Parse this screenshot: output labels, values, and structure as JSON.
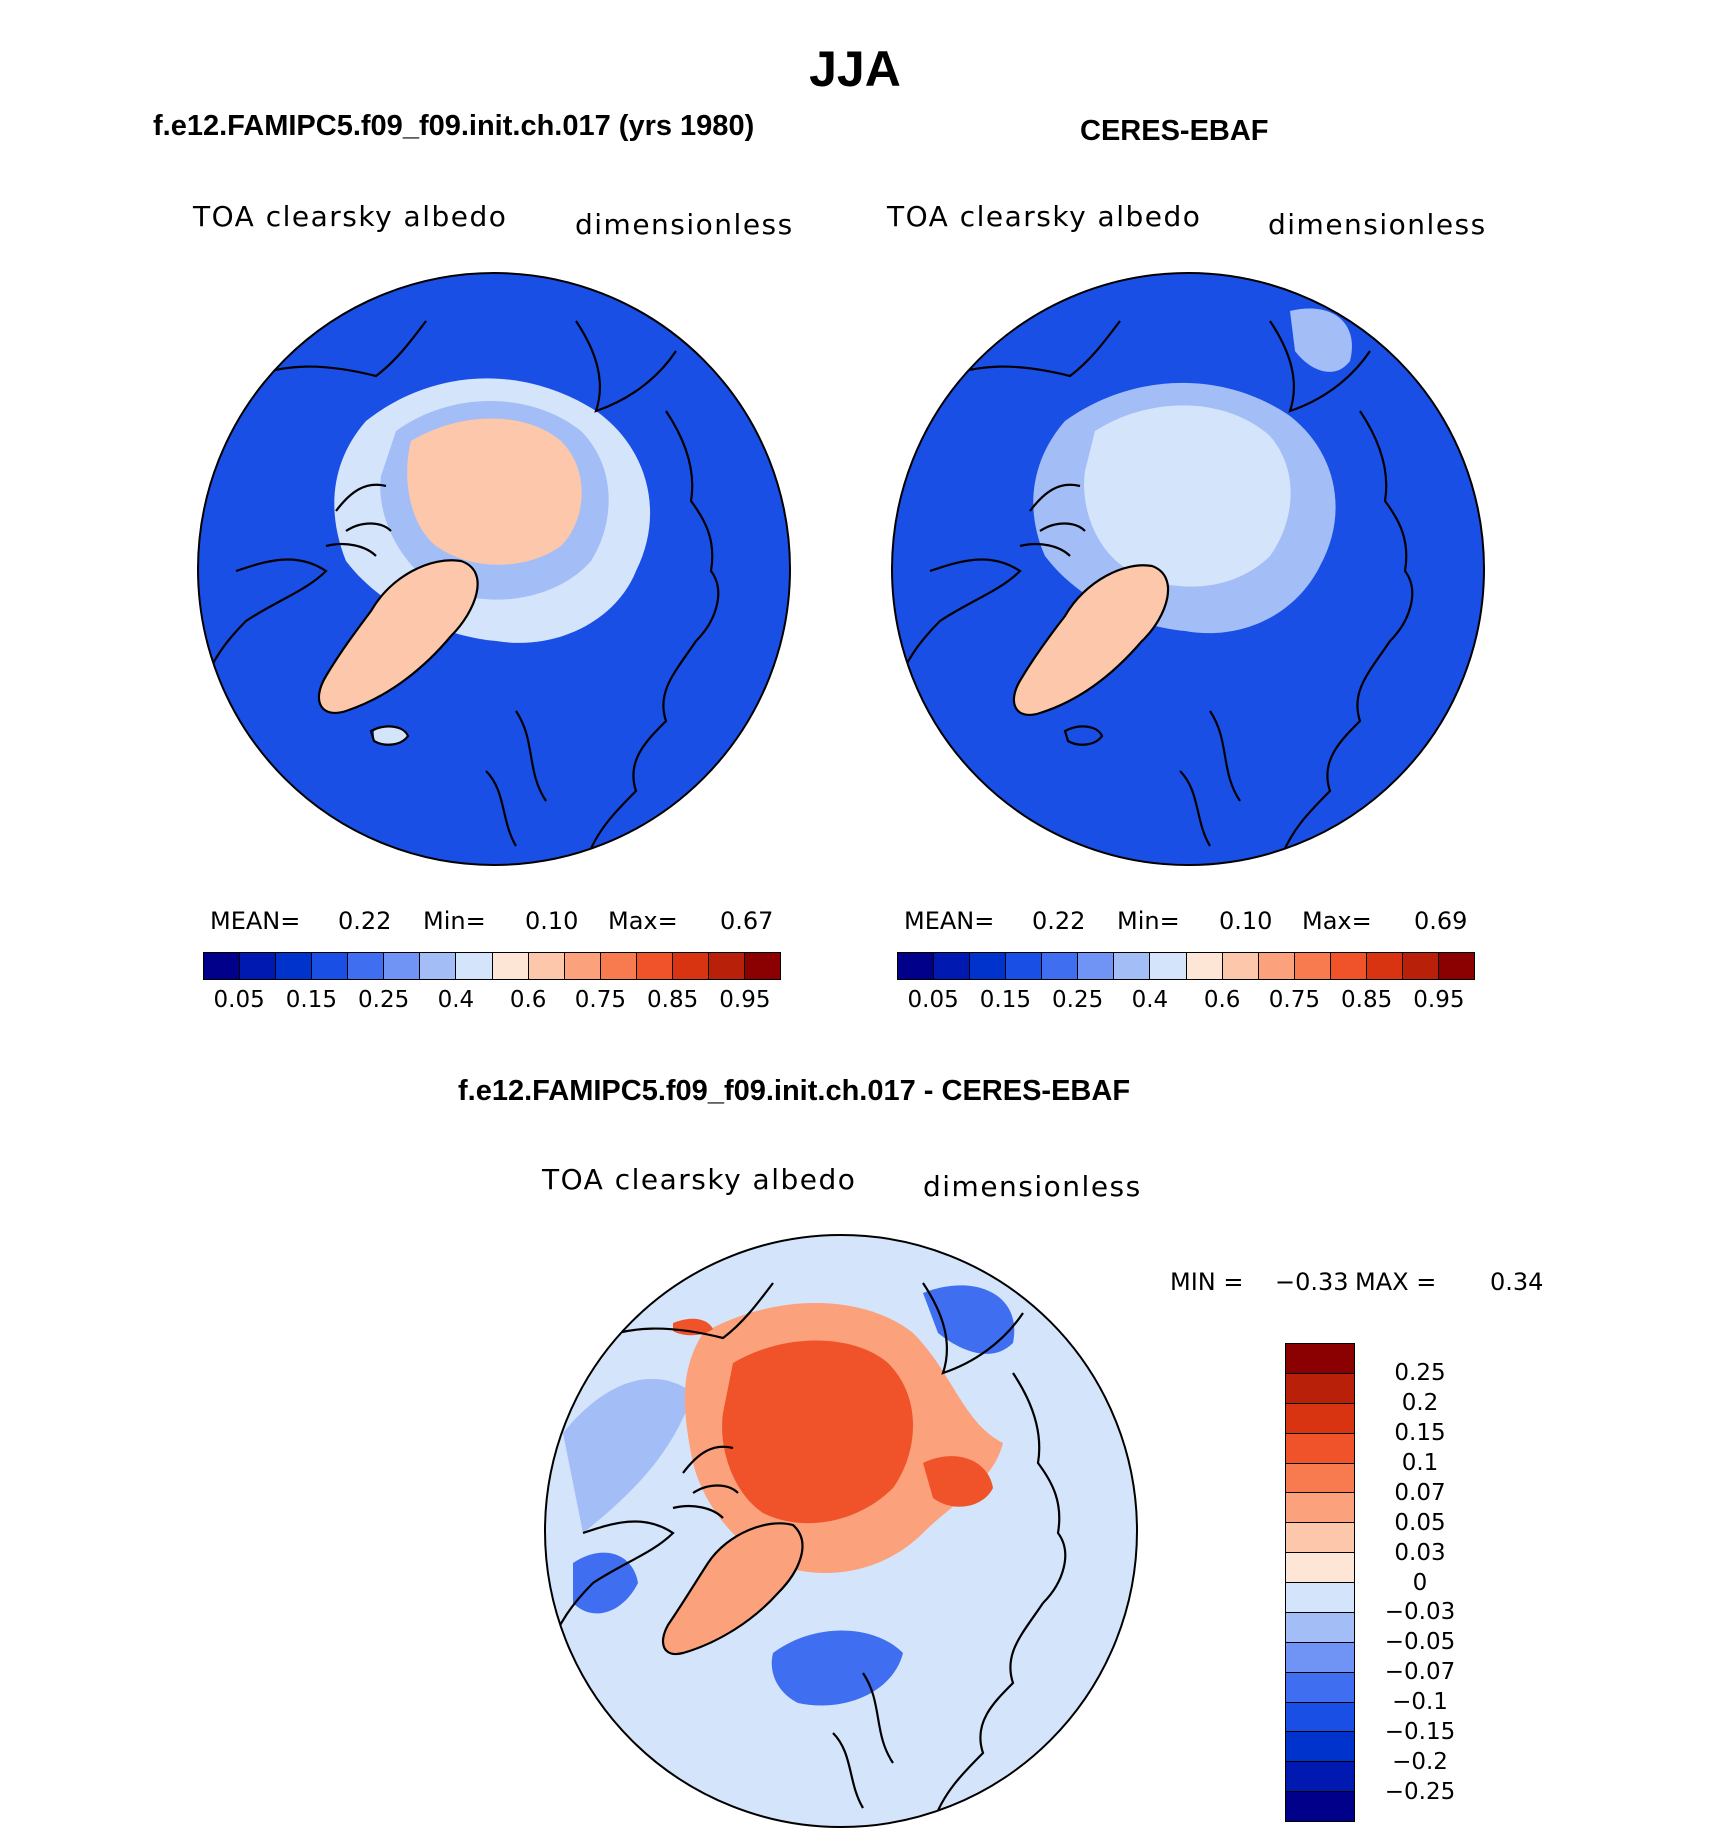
{
  "figure": {
    "title": "JJA"
  },
  "panels": [
    {
      "id": "model",
      "header": "f.e12.FAMIPC5.f09_f09.init.ch.017 (yrs 1980)",
      "variable": "TOA clearsky albedo",
      "units": "dimensionless",
      "stats": {
        "mean_label": "MEAN=",
        "mean": "0.22",
        "min_label": "Min=",
        "min": "0.10",
        "max_label": "Max=",
        "max": "0.67"
      }
    },
    {
      "id": "obs",
      "header": "CERES-EBAF",
      "variable": "TOA clearsky albedo",
      "units": "dimensionless",
      "stats": {
        "mean_label": "MEAN=",
        "mean": "0.22",
        "min_label": "Min=",
        "min": "0.10",
        "max_label": "Max=",
        "max": "0.69"
      }
    },
    {
      "id": "diff",
      "header": "f.e12.FAMIPC5.f09_f09.init.ch.017 - CERES-EBAF",
      "variable": "TOA clearsky albedo",
      "units": "dimensionless",
      "stats": {
        "min_label": "MIN =",
        "min": "−0.33",
        "max_label": "MAX =",
        "max": "0.34"
      }
    }
  ],
  "colorbars": {
    "field": {
      "colors": [
        "#00008b",
        "#0019b0",
        "#0033cc",
        "#1a4fe6",
        "#3f6ef0",
        "#6f94f5",
        "#a3bdf7",
        "#d4e4fa",
        "#fde6d6",
        "#fcc7ab",
        "#fba27c",
        "#f87a4f",
        "#f0532a",
        "#d93412",
        "#b8200a",
        "#8b0000"
      ],
      "tick_labels": [
        "0.05",
        "0.15",
        "0.25",
        "0.4",
        "0.6",
        "0.75",
        "0.85",
        "0.95"
      ]
    },
    "diff": {
      "colors": [
        "#8b0000",
        "#b8200a",
        "#d93412",
        "#f0532a",
        "#f87a4f",
        "#fba27c",
        "#fcc7ab",
        "#fde6d6",
        "#d4e4fa",
        "#a3bdf7",
        "#6f94f5",
        "#3f6ef0",
        "#1a4fe6",
        "#0033cc",
        "#0019b0",
        "#00008b"
      ],
      "tick_labels": [
        "0.25",
        "0.2",
        "0.15",
        "0.1",
        "0.07",
        "0.05",
        "0.03",
        "0",
        "−0.03",
        "−0.05",
        "−0.07",
        "−0.1",
        "−0.15",
        "−0.2",
        "−0.25"
      ]
    }
  },
  "map_colors": {
    "ocean": "#1a4fe6",
    "ice_light": "#a3bdf7",
    "ice_pale": "#d4e4fa",
    "greenland": "#fcc7ab",
    "arctic_core_model": "#fcc7ab",
    "arctic_core_obs": "#d4e4fa",
    "diff_bg": "#d4e4fa",
    "diff_mid": "#a3bdf7",
    "diff_neg": "#3f6ef0",
    "diff_pos": "#f0532a",
    "diff_pos_light": "#fba27c",
    "coast": "#000000"
  }
}
